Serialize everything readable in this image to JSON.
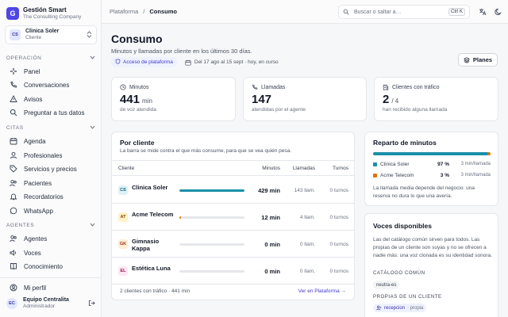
{
  "brand": {
    "logo_letter": "G",
    "name": "Gestión Smart",
    "subtitle": "The Consulting Company"
  },
  "client_selector": {
    "initials": "CS",
    "name": "Clinica Soler",
    "role": "Cliente"
  },
  "sidebar": {
    "sections": [
      {
        "label": "OPERACIÓN",
        "items": [
          "Panel",
          "Conversaciones",
          "Avisos",
          "Preguntar a tus datos"
        ]
      },
      {
        "label": "CITAS",
        "items": [
          "Agenda",
          "Profesionales",
          "Servicios y precios",
          "Pacientes",
          "Recordatorios",
          "WhatsApp"
        ]
      },
      {
        "label": "AGENTES",
        "items": [
          "Agentes",
          "Voces",
          "Conocimiento"
        ]
      }
    ],
    "profile_label": "Mi perfil",
    "user": {
      "initials": "EC",
      "name": "Equipo Centralita",
      "role": "Administrador"
    }
  },
  "topbar": {
    "breadcrumb": [
      "Plataforma",
      "Consumo"
    ],
    "search_placeholder": "Buscar o saltar a…",
    "search_shortcut": "Ctrl K"
  },
  "header": {
    "title": "Consumo",
    "subtitle": "Minutos y llamadas por cliente en los últimos 30 días.",
    "access_tag": "Acceso de plataforma",
    "date_range": "Del 17 ago al 15 sept · hoy, en curso",
    "plans_button": "Planes"
  },
  "stats": [
    {
      "label": "Minutos",
      "value": "441",
      "unit": "min",
      "desc": "de voz atendida"
    },
    {
      "label": "Llamadas",
      "value": "147",
      "unit": "",
      "desc": "atendidas por el agente"
    },
    {
      "label": "Clientes con tráfico",
      "value": "2",
      "unit": "/ 4",
      "desc": "han recibido alguna llamada"
    }
  ],
  "per_client": {
    "title": "Por cliente",
    "subtitle": "La barra se mide contra el que más consume, para que se vea quién pesa.",
    "columns": [
      "Cliente",
      "Minutos",
      "Llamadas",
      "Turnos"
    ],
    "rows": [
      {
        "initials": "CS",
        "name": "Clinica Soler",
        "share": 1.0,
        "minutes": "429 min",
        "calls": "143 llam.",
        "turns": "0 turnos",
        "color": "#1b8fa8",
        "bg": "#e0f2f7",
        "fg": "#0e5f73"
      },
      {
        "initials": "AT",
        "name": "Acme Telecom",
        "share": 0.028,
        "minutes": "12 min",
        "calls": "4 llam.",
        "turns": "0 turnos",
        "color": "#d97706",
        "bg": "#fef3c7",
        "fg": "#92400e"
      },
      {
        "initials": "GK",
        "name": "Gimnasio Kappa",
        "share": 0,
        "minutes": "0 min",
        "calls": "0 llam.",
        "turns": "0 turnos",
        "color": "#d97706",
        "bg": "#ffedd5",
        "fg": "#9a3412"
      },
      {
        "initials": "EL",
        "name": "Estética Luna",
        "share": 0,
        "minutes": "0 min",
        "calls": "0 llam.",
        "turns": "0 turnos",
        "color": "#db2777",
        "bg": "#fce7f3",
        "fg": "#9d174d"
      }
    ],
    "footer_summary": "2 clientes con tráfico · 441 min",
    "footer_link": "Ver en Plataforma →"
  },
  "distribution": {
    "title": "Reparto de minutos",
    "items": [
      {
        "name": "Clinica Soler",
        "percent": "97 %",
        "share": 97,
        "rate": "3 min/llamada",
        "color": "#1b8fa8"
      },
      {
        "name": "Acme Telecom",
        "percent": "3 %",
        "share": 3,
        "rate": "3 min/llamada",
        "color": "#d97706"
      }
    ],
    "note": "La llamada media depende del negocio: una reserva no dura lo que una avería."
  },
  "voices": {
    "title": "Voces disponibles",
    "note": "Las del catálogo común sirven para todos. Las propias de un cliente son suyas y no se ofrecen a nadie más: una voz clonada es su identidad sonora.",
    "common_label": "CATÁLOGO COMÚN",
    "common_voices": [
      "neutra-es"
    ],
    "own_label": "PROPIAS DE UN CLIENTE",
    "own_voices": [
      {
        "name": "recepcion",
        "tag": "· propia"
      }
    ]
  },
  "colors": {
    "accent": "#4f46e5",
    "teal": "#1b8fa8",
    "amber": "#d97706"
  }
}
